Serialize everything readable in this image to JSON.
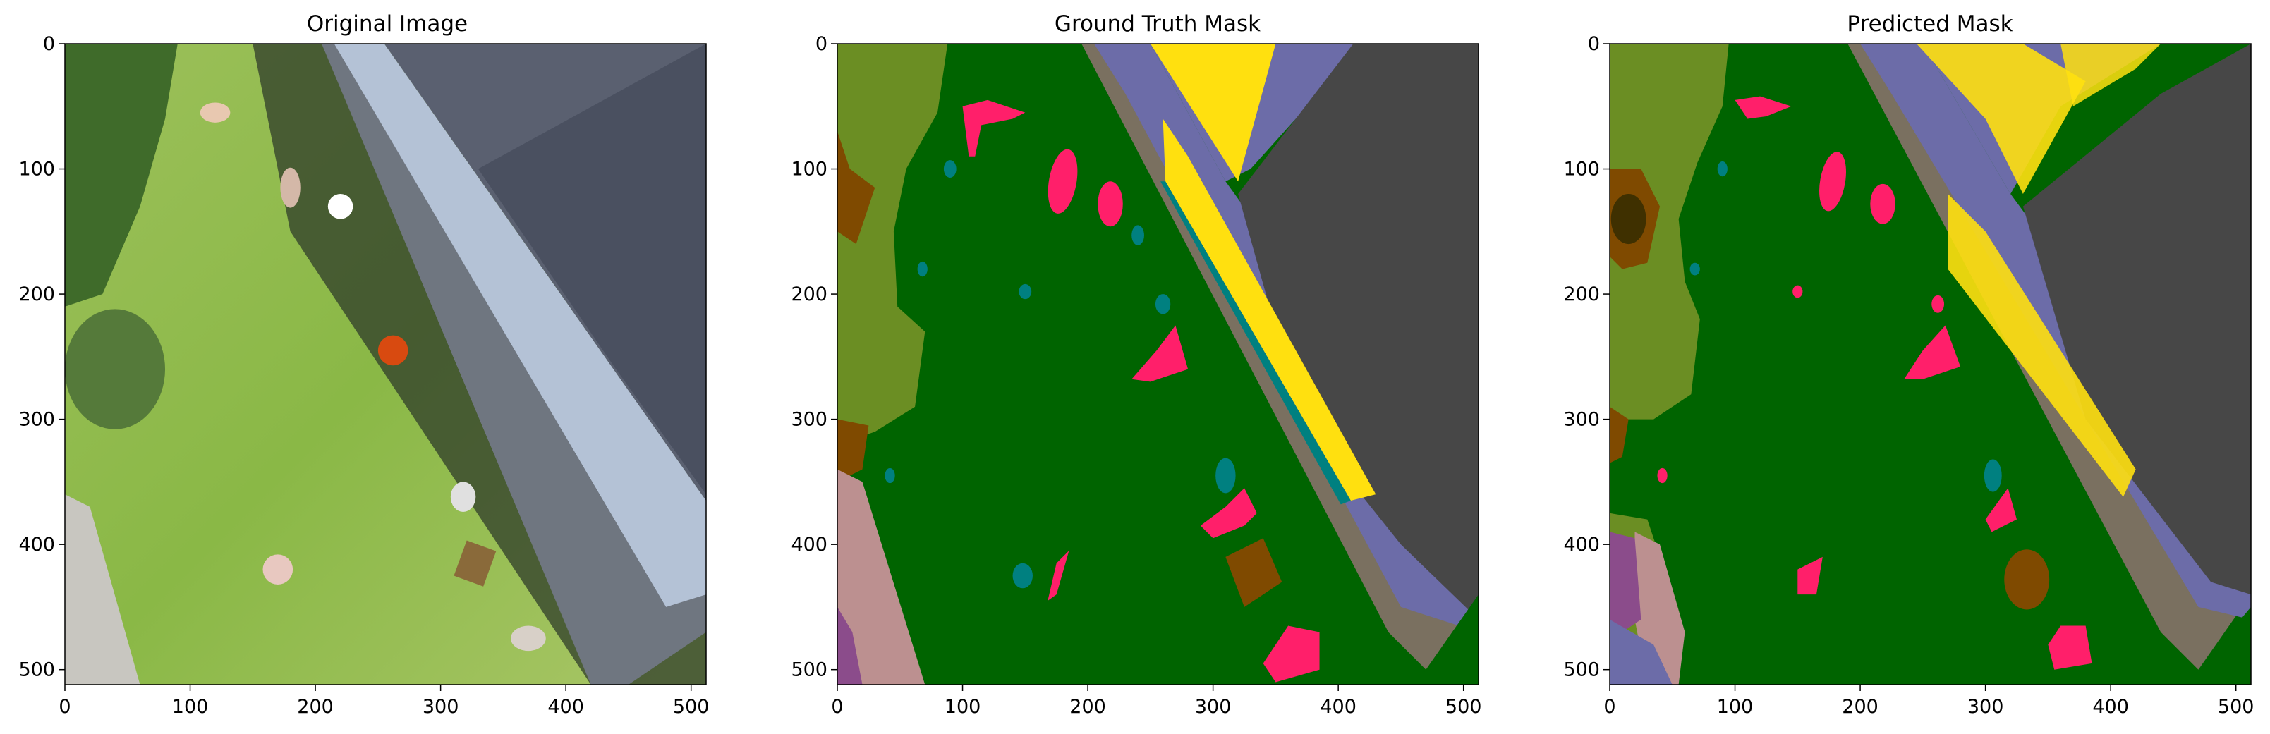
{
  "figure": {
    "panels": [
      {
        "id": "original",
        "title": "Original Image",
        "x_ticks": [
          "0",
          "100",
          "200",
          "300",
          "400",
          "500"
        ],
        "y_ticks": [
          "0",
          "100",
          "200",
          "300",
          "400",
          "500"
        ]
      },
      {
        "id": "ground-truth",
        "title": "Ground Truth Mask",
        "x_ticks": [
          "0",
          "100",
          "200",
          "300",
          "400",
          "500"
        ],
        "y_ticks": [
          "0",
          "100",
          "200",
          "300",
          "400",
          "500"
        ]
      },
      {
        "id": "predicted",
        "title": "Predicted Mask",
        "x_ticks": [
          "0",
          "100",
          "200",
          "300",
          "400",
          "500"
        ],
        "y_ticks": [
          "0",
          "100",
          "200",
          "300",
          "400",
          "500"
        ]
      }
    ],
    "image_extent": [
      0,
      512
    ],
    "tick_values": [
      0,
      100,
      200,
      300,
      400,
      500
    ],
    "colors": {
      "grass": "#006400",
      "vegetation": "#6b8e23",
      "soil": "#7f4a00",
      "person": "#ff1f6a",
      "object": "#008080",
      "building": "#6c6ca8",
      "roof": "#474747",
      "yellow-structure": "#ffe00f",
      "pavement": "#7a7060",
      "gravel": "#bc9090",
      "purple": "#8b4c8b",
      "photo-grass": "#8db84a",
      "photo-roof": "#5a6070",
      "photo-wall": "#b4c2d6"
    }
  }
}
